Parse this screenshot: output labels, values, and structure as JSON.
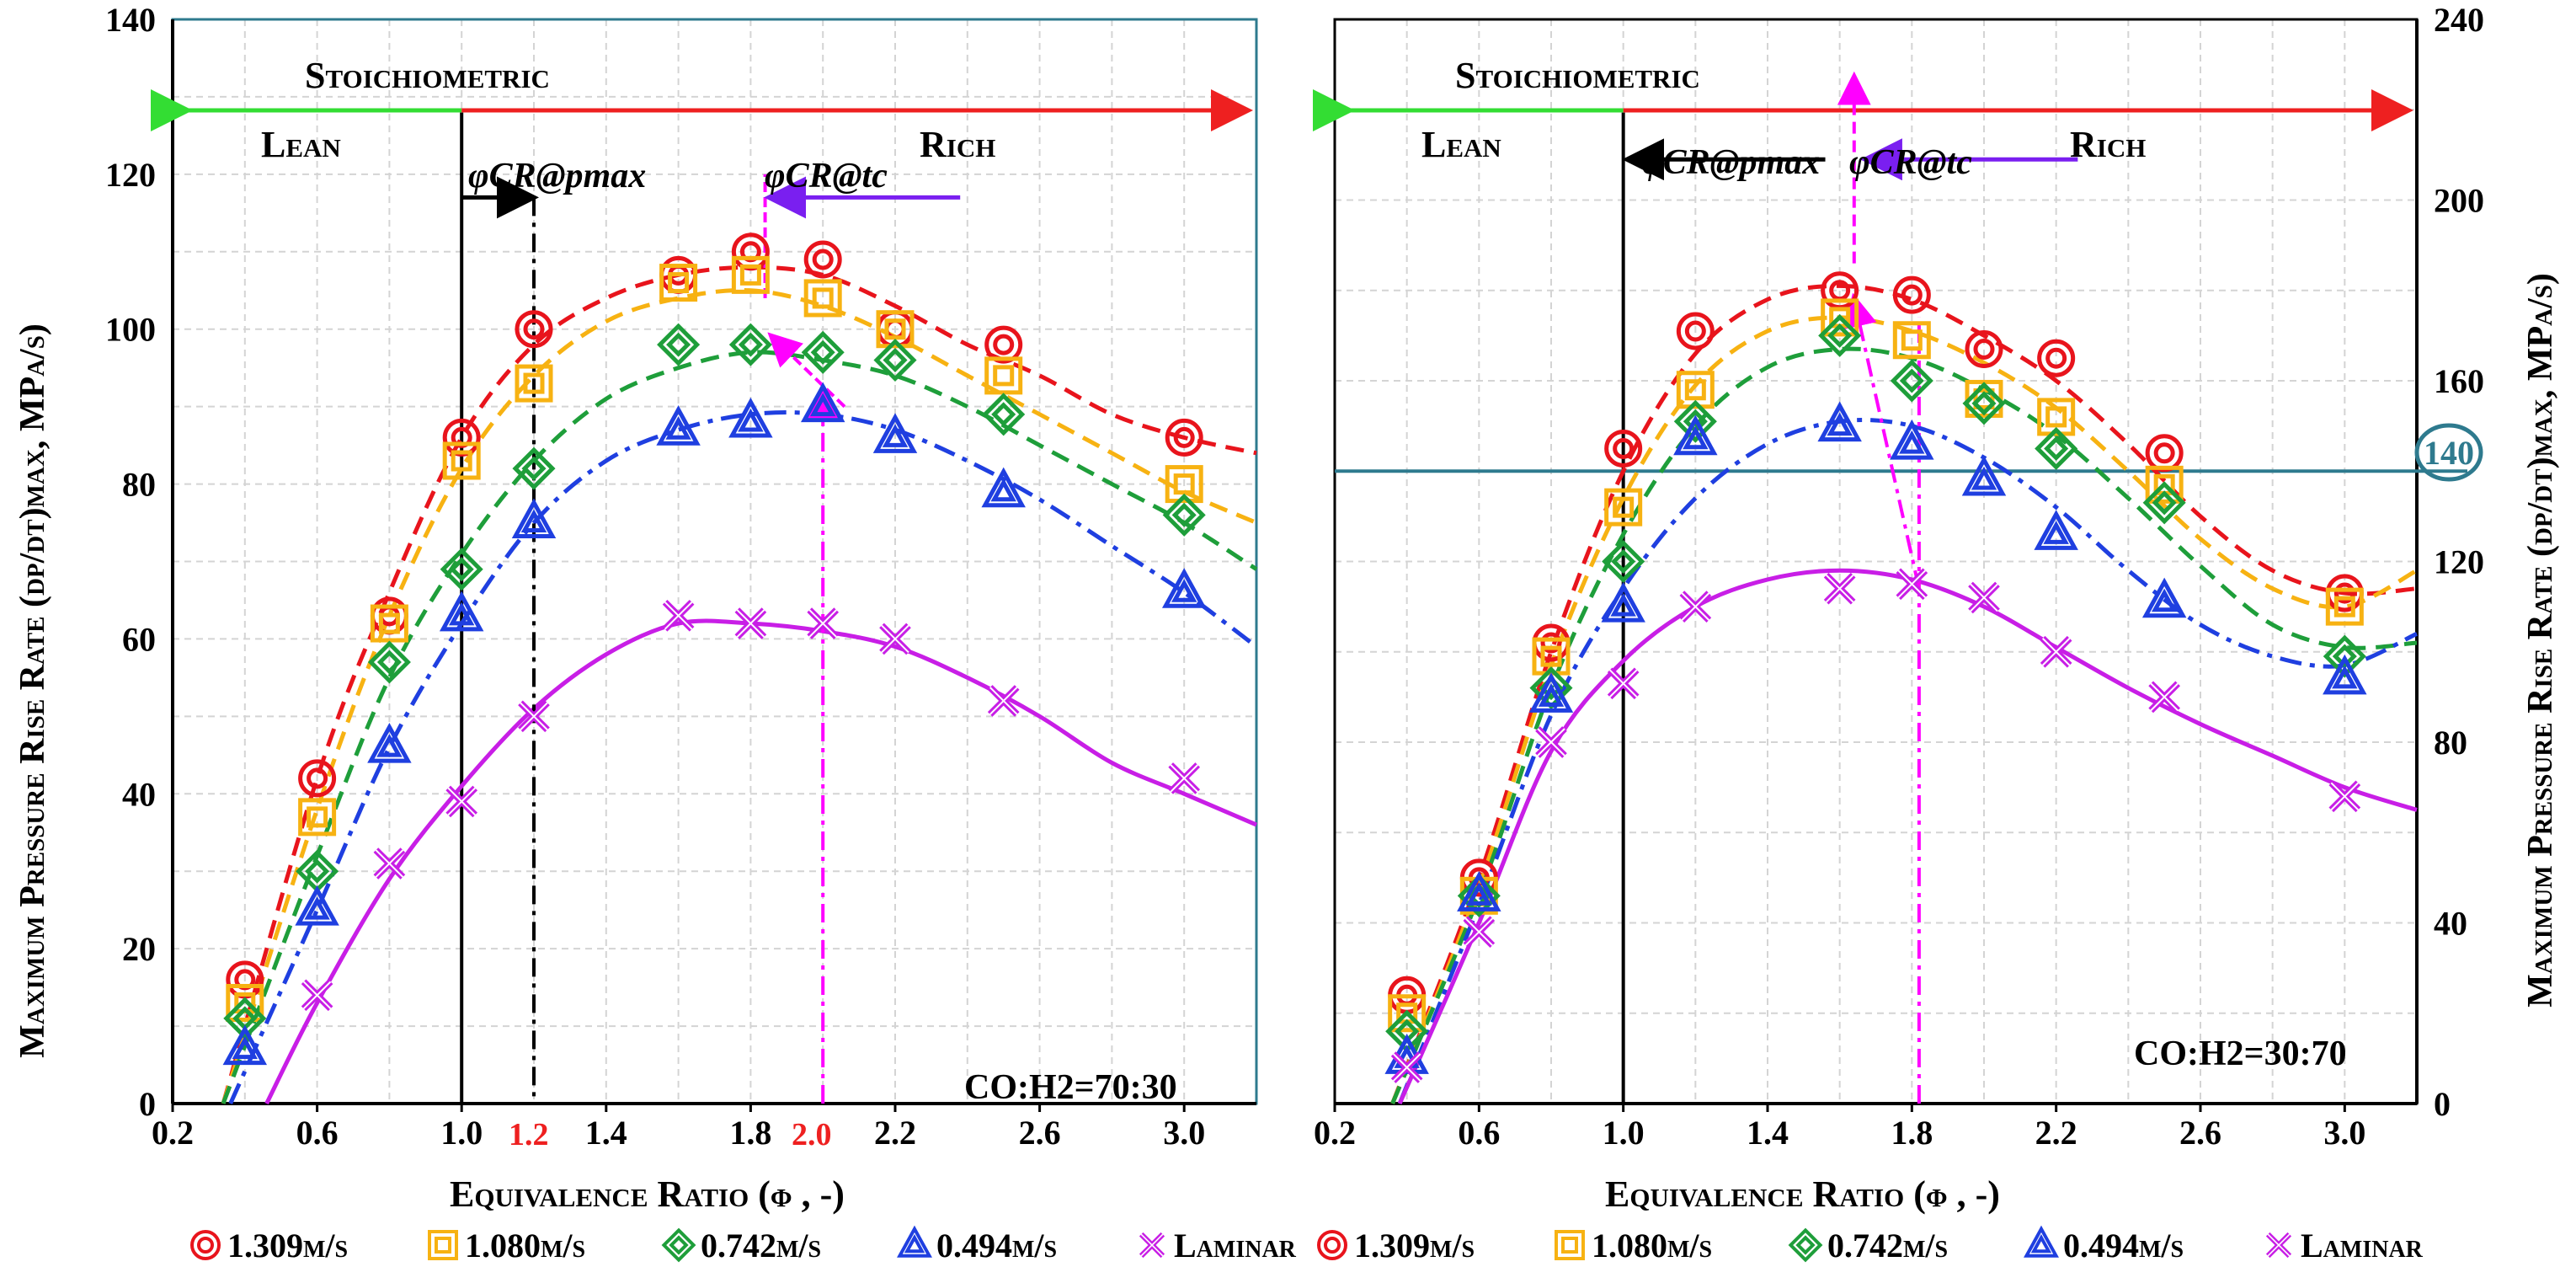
{
  "chart_data": [
    {
      "type": "scatter",
      "xlabel": "Equivalence Ratio (φ , -)",
      "ylabel": "Maximum Pressure Rise Rate (dp/dt)max, MPa/s)",
      "xlim": [
        0.2,
        3.2
      ],
      "ylim": [
        0,
        140
      ],
      "xticks": [
        "0.2",
        "0.6",
        "1.0",
        "1.4",
        "1.8",
        "2.2",
        "2.6",
        "3.0"
      ],
      "yticks": [
        "0",
        "20",
        "40",
        "60",
        "80",
        "100",
        "120",
        "140"
      ],
      "grid": true,
      "annotations": {
        "stoich": "Stoichiometric",
        "lean": "Lean",
        "rich": "Rich",
        "phi_pmax": "φCR@pmax",
        "phi_tc": "φCR@tc",
        "ratio": "CO:H2=70:30",
        "mark1": "1.2",
        "mark2": "2.0"
      },
      "series": [
        {
          "name": "1.309m/s",
          "color": "#e8141c",
          "marker": "circle",
          "x": [
            0.4,
            0.6,
            0.8,
            1.0,
            1.2,
            1.6,
            1.8,
            2.0,
            2.2,
            2.5,
            3.0
          ],
          "y": [
            16,
            42,
            63,
            86,
            100,
            107,
            110,
            109,
            100,
            98,
            86
          ]
        },
        {
          "name": "1.080m/s",
          "color": "#f7b212",
          "marker": "square",
          "x": [
            0.4,
            0.6,
            0.8,
            1.0,
            1.2,
            1.6,
            1.8,
            2.0,
            2.2,
            2.5,
            3.0
          ],
          "y": [
            13,
            37,
            62,
            83,
            93,
            106,
            107,
            104,
            100,
            94,
            80
          ]
        },
        {
          "name": "0.742m/s",
          "color": "#1e9e3a",
          "marker": "diamond",
          "x": [
            0.4,
            0.6,
            0.8,
            1.0,
            1.2,
            1.6,
            1.8,
            2.0,
            2.2,
            2.5,
            3.0
          ],
          "y": [
            11,
            30,
            57,
            69,
            82,
            98,
            98,
            97,
            96,
            89,
            76
          ]
        },
        {
          "name": "0.494m/s",
          "color": "#1f3fe0",
          "marker": "triangle",
          "x": [
            0.4,
            0.6,
            0.8,
            1.0,
            1.2,
            1.6,
            1.8,
            2.0,
            2.2,
            2.5,
            3.0
          ],
          "y": [
            7,
            25,
            46,
            63,
            75,
            87,
            88,
            90,
            86,
            79,
            66
          ]
        },
        {
          "name": "Laminar",
          "color": "#c81ee6",
          "marker": "x",
          "x": [
            0.6,
            0.8,
            1.0,
            1.2,
            1.6,
            1.8,
            2.0,
            2.2,
            2.5,
            3.0
          ],
          "y": [
            14,
            31,
            39,
            50,
            63,
            62,
            62,
            60,
            52,
            42
          ]
        }
      ],
      "curves": [
        {
          "color": "#e8141c",
          "dash": "dash",
          "x": [
            0.34,
            0.6,
            0.8,
            1.0,
            1.2,
            1.4,
            1.6,
            1.8,
            2.0,
            2.2,
            2.4,
            2.6,
            2.8,
            3.0,
            3.2
          ],
          "y": [
            0,
            42,
            66,
            86,
            98,
            104,
            107,
            108,
            107,
            103,
            98,
            94,
            89,
            86,
            84
          ]
        },
        {
          "color": "#f7b212",
          "dash": "dash",
          "x": [
            0.34,
            0.6,
            0.8,
            1.0,
            1.2,
            1.4,
            1.6,
            1.8,
            2.0,
            2.2,
            2.4,
            2.6,
            2.8,
            3.0,
            3.2
          ],
          "y": [
            0,
            38,
            63,
            82,
            94,
            101,
            104,
            105,
            103,
            99,
            94,
            89,
            84,
            79,
            75
          ]
        },
        {
          "color": "#1e9e3a",
          "dash": "dash",
          "x": [
            0.34,
            0.6,
            0.8,
            1.0,
            1.2,
            1.4,
            1.6,
            1.8,
            2.0,
            2.2,
            2.4,
            2.6,
            2.8,
            3.0,
            3.2
          ],
          "y": [
            0,
            32,
            55,
            71,
            83,
            91,
            95,
            97,
            96,
            94,
            90,
            85,
            80,
            75,
            69
          ]
        },
        {
          "color": "#1f3fe0",
          "dash": "dashdot",
          "x": [
            0.36,
            0.6,
            0.8,
            1.0,
            1.2,
            1.4,
            1.6,
            1.8,
            2.0,
            2.2,
            2.4,
            2.6,
            2.8,
            3.0,
            3.2
          ],
          "y": [
            0,
            25,
            46,
            62,
            75,
            83,
            87,
            89,
            89,
            87,
            83,
            78,
            72,
            66,
            59
          ]
        },
        {
          "color": "#c81ee6",
          "dash": "solid",
          "x": [
            0.46,
            0.6,
            0.8,
            1.0,
            1.2,
            1.4,
            1.6,
            1.8,
            2.0,
            2.2,
            2.4,
            2.6,
            2.8,
            3.0,
            3.2
          ],
          "y": [
            0,
            13,
            29,
            41,
            51,
            58,
            62,
            62,
            61,
            59,
            55,
            50,
            44,
            40,
            36
          ]
        }
      ]
    },
    {
      "type": "scatter",
      "xlabel": "Equivalence Ratio (φ , -)",
      "ylabel": "Maximum Pressure Rise Rate (dp/dt)max, MPa/s)",
      "xlim": [
        0.2,
        3.2
      ],
      "ylim": [
        0,
        240
      ],
      "xticks": [
        "0.2",
        "0.6",
        "1.0",
        "1.4",
        "1.8",
        "2.2",
        "2.6",
        "3.0"
      ],
      "yticks": [
        "0",
        "40",
        "80",
        "120",
        "160",
        "200",
        "240"
      ],
      "grid": true,
      "hline": 140,
      "hline_label": "140",
      "annotations": {
        "stoich": "Stoichiometric",
        "lean": "Lean",
        "rich": "Rich",
        "phi_pmax": "φCR@pmax",
        "phi_tc": "φCR@tc",
        "ratio": "CO:H2=30:70"
      },
      "series": [
        {
          "name": "1.309m/s",
          "color": "#e8141c",
          "marker": "circle",
          "x": [
            0.4,
            0.6,
            0.8,
            1.0,
            1.2,
            1.6,
            1.8,
            2.0,
            2.2,
            2.5,
            3.0
          ],
          "y": [
            24,
            50,
            102,
            145,
            171,
            180,
            179,
            167,
            165,
            144,
            113
          ]
        },
        {
          "name": "1.080m/s",
          "color": "#f7b212",
          "marker": "square",
          "x": [
            0.4,
            0.6,
            0.8,
            1.0,
            1.2,
            1.6,
            1.8,
            2.0,
            2.2,
            2.5,
            3.0
          ],
          "y": [
            20,
            46,
            99,
            132,
            158,
            174,
            169,
            156,
            152,
            137,
            110
          ]
        },
        {
          "name": "0.742m/s",
          "color": "#1e9e3a",
          "marker": "diamond",
          "x": [
            0.4,
            0.6,
            0.8,
            1.0,
            1.2,
            1.6,
            1.8,
            2.0,
            2.2,
            2.5,
            3.0
          ],
          "y": [
            16,
            46,
            92,
            120,
            151,
            170,
            160,
            155,
            145,
            133,
            99
          ]
        },
        {
          "name": "0.494m/s",
          "color": "#1f3fe0",
          "marker": "triangle",
          "x": [
            0.4,
            0.6,
            0.8,
            1.0,
            1.2,
            1.6,
            1.8,
            2.0,
            2.2,
            2.5,
            3.0
          ],
          "y": [
            10,
            46,
            90,
            110,
            147,
            150,
            146,
            138,
            126,
            111,
            94
          ]
        },
        {
          "name": "Laminar",
          "color": "#c81ee6",
          "marker": "x",
          "x": [
            0.4,
            0.6,
            0.8,
            1.0,
            1.2,
            1.6,
            1.8,
            2.0,
            2.2,
            2.5,
            3.0
          ],
          "y": [
            8,
            38,
            80,
            93,
            110,
            114,
            115,
            112,
            100,
            90,
            68
          ]
        }
      ],
      "curves": [
        {
          "color": "#e8141c",
          "dash": "dash",
          "x": [
            0.36,
            0.6,
            0.8,
            1.0,
            1.2,
            1.4,
            1.6,
            1.8,
            2.0,
            2.2,
            2.4,
            2.6,
            2.8,
            3.0,
            3.2
          ],
          "y": [
            0,
            50,
            100,
            140,
            166,
            178,
            181,
            178,
            170,
            160,
            146,
            130,
            118,
            113,
            114
          ]
        },
        {
          "color": "#f7b212",
          "dash": "dash",
          "x": [
            0.36,
            0.6,
            0.8,
            1.0,
            1.2,
            1.4,
            1.6,
            1.8,
            2.0,
            2.2,
            2.4,
            2.6,
            2.8,
            3.0,
            3.2
          ],
          "y": [
            0,
            48,
            97,
            134,
            159,
            171,
            174,
            171,
            164,
            154,
            140,
            125,
            114,
            110,
            118
          ]
        },
        {
          "color": "#1e9e3a",
          "dash": "dash",
          "x": [
            0.36,
            0.6,
            0.8,
            1.0,
            1.2,
            1.4,
            1.6,
            1.8,
            2.0,
            2.2,
            2.4,
            2.6,
            2.8,
            3.0,
            3.2
          ],
          "y": [
            0,
            46,
            92,
            126,
            150,
            163,
            167,
            165,
            158,
            148,
            134,
            119,
            106,
            101,
            102
          ]
        },
        {
          "color": "#1f3fe0",
          "dash": "dashdot",
          "x": [
            0.38,
            0.6,
            0.8,
            1.0,
            1.2,
            1.4,
            1.6,
            1.8,
            2.0,
            2.2,
            2.4,
            2.6,
            2.8,
            3.0,
            3.2
          ],
          "y": [
            0,
            44,
            86,
            114,
            134,
            146,
            151,
            150,
            143,
            132,
            118,
            106,
            99,
            97,
            104
          ]
        },
        {
          "color": "#c81ee6",
          "dash": "solid",
          "x": [
            0.38,
            0.6,
            0.8,
            1.0,
            1.2,
            1.4,
            1.6,
            1.8,
            2.0,
            2.2,
            2.4,
            2.6,
            2.8,
            3.0,
            3.2
          ],
          "y": [
            0,
            40,
            78,
            98,
            110,
            116,
            118,
            116,
            110,
            101,
            92,
            84,
            77,
            70,
            65
          ]
        }
      ]
    }
  ],
  "legend": [
    {
      "label": "1.309m/s",
      "marker": "circle",
      "color": "#e8141c"
    },
    {
      "label": "1.080m/s",
      "marker": "square",
      "color": "#f7b212"
    },
    {
      "label": "0.742m/s",
      "marker": "diamond",
      "color": "#1e9e3a"
    },
    {
      "label": "0.494m/s",
      "marker": "triangle",
      "color": "#1f3fe0"
    },
    {
      "label": "Laminar",
      "marker": "x",
      "color": "#c81ee6"
    }
  ],
  "colors": {
    "frame": "#2e7a8e",
    "lean_arrow": "#33dd33",
    "rich_arrow": "#ee2020",
    "pmax_arrow": "#000000",
    "tc_arrow": "#7a1ff0",
    "magenta_guide": "#ff00ff",
    "hline": "#2e7a8e"
  }
}
